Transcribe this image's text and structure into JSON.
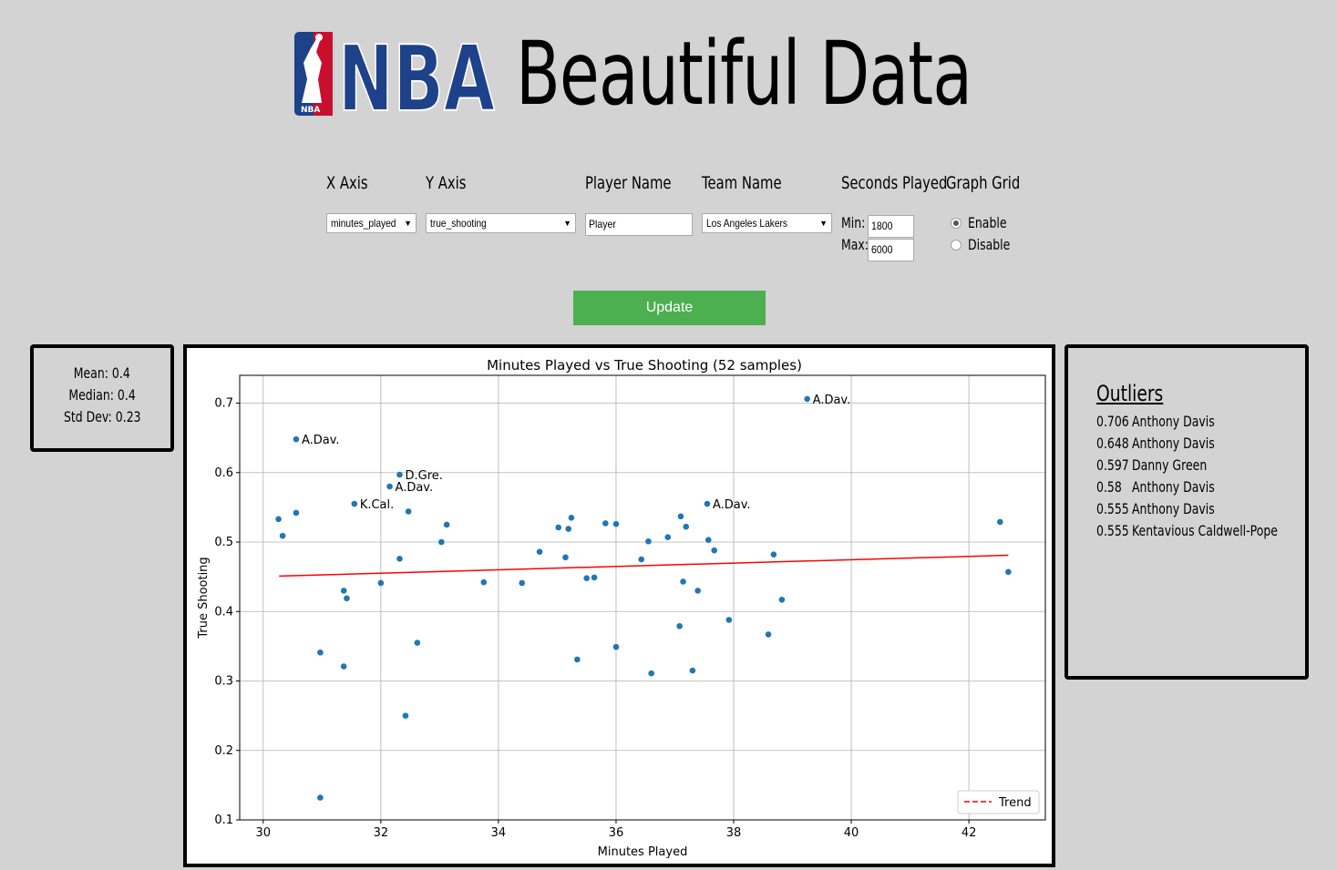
{
  "header": {
    "logo_text": "NBA",
    "title": "Beautiful Data"
  },
  "controls": {
    "x_axis_label": "X Axis",
    "x_axis_value": "minutes_played",
    "y_axis_label": "Y Axis",
    "y_axis_value": "true_shooting",
    "player_label": "Player Name",
    "player_value": "Player",
    "team_label": "Team Name",
    "team_value": "Los Angeles Lakers",
    "seconds_label": "Seconds Played",
    "min_label": "Min:",
    "min_value": "1800",
    "max_label": "Max:",
    "max_value": "6000",
    "grid_label": "Graph Grid",
    "grid_enable": "Enable",
    "grid_disable": "Disable",
    "grid_selected": "Enable",
    "update_label": "Update"
  },
  "stats": {
    "mean": "Mean: 0.4",
    "median": "Median: 0.4",
    "std_dev": "Std Dev: 0.23"
  },
  "outliers": {
    "title": "Outliers",
    "rows": [
      {
        "value": "0.706",
        "name": "Anthony Davis"
      },
      {
        "value": "0.648",
        "name": "Anthony Davis"
      },
      {
        "value": "0.597",
        "name": "Danny Green"
      },
      {
        "value": "0.58",
        "name": "Anthony Davis"
      },
      {
        "value": "0.555",
        "name": "Anthony Davis"
      },
      {
        "value": "0.555",
        "name": "Kentavious Caldwell-Pope"
      }
    ]
  },
  "colors": {
    "point": "#1f77b4",
    "trend": "#ff0000",
    "button": "#4caf50",
    "logo_blue": "#1d428a",
    "logo_red": "#c8102e"
  },
  "chart_data": {
    "type": "scatter",
    "title": "Minutes Played vs True Shooting (52 samples)",
    "xlabel": "Minutes Played",
    "ylabel": "True Shooting",
    "xlim": [
      29.6,
      43.3
    ],
    "ylim": [
      0.1,
      0.74
    ],
    "xticks": [
      30,
      32,
      34,
      36,
      38,
      40,
      42
    ],
    "yticks": [
      0.1,
      0.2,
      0.3,
      0.4,
      0.5,
      0.6,
      0.7
    ],
    "grid": true,
    "legend": {
      "placement": "bottom-right",
      "entries": [
        "Trend"
      ]
    },
    "trend": {
      "x": [
        30.27,
        42.67
      ],
      "y": [
        0.451,
        0.481
      ]
    },
    "points": [
      {
        "x": 30.26,
        "y": 0.533
      },
      {
        "x": 30.33,
        "y": 0.509
      },
      {
        "x": 30.56,
        "y": 0.542
      },
      {
        "x": 30.56,
        "y": 0.648,
        "label": "A.Dav."
      },
      {
        "x": 30.97,
        "y": 0.341
      },
      {
        "x": 30.97,
        "y": 0.132
      },
      {
        "x": 31.37,
        "y": 0.43
      },
      {
        "x": 31.37,
        "y": 0.321
      },
      {
        "x": 31.42,
        "y": 0.419
      },
      {
        "x": 31.55,
        "y": 0.555,
        "label": "K.Cal."
      },
      {
        "x": 32.0,
        "y": 0.441
      },
      {
        "x": 32.15,
        "y": 0.58,
        "label": "A.Dav."
      },
      {
        "x": 32.32,
        "y": 0.597,
        "label": "D.Gre."
      },
      {
        "x": 32.32,
        "y": 0.476
      },
      {
        "x": 32.42,
        "y": 0.25
      },
      {
        "x": 32.47,
        "y": 0.544
      },
      {
        "x": 32.62,
        "y": 0.355
      },
      {
        "x": 33.03,
        "y": 0.5
      },
      {
        "x": 33.12,
        "y": 0.525
      },
      {
        "x": 33.75,
        "y": 0.442
      },
      {
        "x": 34.4,
        "y": 0.441
      },
      {
        "x": 34.7,
        "y": 0.486
      },
      {
        "x": 35.02,
        "y": 0.521
      },
      {
        "x": 35.14,
        "y": 0.478
      },
      {
        "x": 35.19,
        "y": 0.519
      },
      {
        "x": 35.24,
        "y": 0.535
      },
      {
        "x": 35.34,
        "y": 0.331
      },
      {
        "x": 35.5,
        "y": 0.448
      },
      {
        "x": 35.63,
        "y": 0.449
      },
      {
        "x": 35.82,
        "y": 0.527
      },
      {
        "x": 36.0,
        "y": 0.526
      },
      {
        "x": 36.0,
        "y": 0.349
      },
      {
        "x": 36.43,
        "y": 0.475
      },
      {
        "x": 36.55,
        "y": 0.501
      },
      {
        "x": 36.6,
        "y": 0.311
      },
      {
        "x": 36.88,
        "y": 0.507
      },
      {
        "x": 37.08,
        "y": 0.379
      },
      {
        "x": 37.1,
        "y": 0.537
      },
      {
        "x": 37.14,
        "y": 0.443
      },
      {
        "x": 37.19,
        "y": 0.522
      },
      {
        "x": 37.3,
        "y": 0.315
      },
      {
        "x": 37.39,
        "y": 0.43
      },
      {
        "x": 37.55,
        "y": 0.555,
        "label": "A.Dav."
      },
      {
        "x": 37.57,
        "y": 0.503
      },
      {
        "x": 37.67,
        "y": 0.488
      },
      {
        "x": 37.92,
        "y": 0.388
      },
      {
        "x": 38.59,
        "y": 0.367
      },
      {
        "x": 38.68,
        "y": 0.482
      },
      {
        "x": 38.82,
        "y": 0.417
      },
      {
        "x": 39.25,
        "y": 0.706,
        "label": "A.Dav."
      },
      {
        "x": 42.53,
        "y": 0.529
      },
      {
        "x": 42.67,
        "y": 0.457
      }
    ]
  }
}
